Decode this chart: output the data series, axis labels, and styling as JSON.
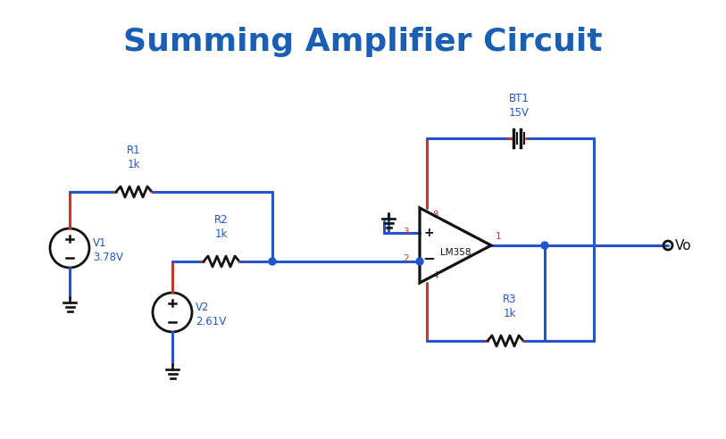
{
  "title": "Summing Amplifier Circuit",
  "title_color": "#1a5fb4",
  "title_fontsize": 26,
  "title_fontweight": "bold",
  "wire_color": "#2255cc",
  "red_color": "#c0392b",
  "black_color": "#111111",
  "label_color": "#2255cc",
  "bg_color": "#ffffff",
  "V1_label": "V1\n3.78V",
  "V2_label": "V2\n2.61V",
  "R1_label": "R1\n1k",
  "R2_label": "R2\n1k",
  "R3_label": "R3\n1k",
  "BT1_label": "BT1\n15V",
  "opamp_label": "LM358",
  "Vo_label": "Vo"
}
